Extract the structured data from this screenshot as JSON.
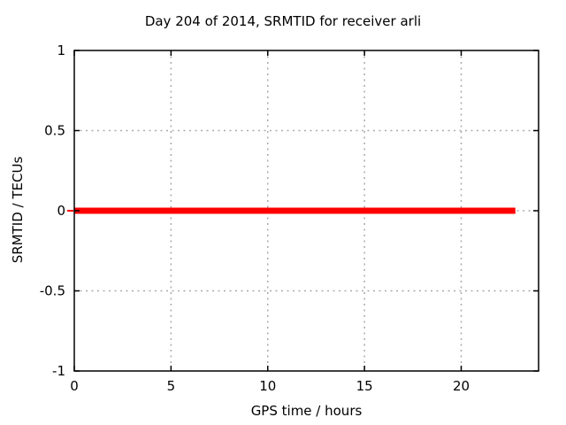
{
  "chart_data": {
    "type": "line",
    "title": "Day 204 of 2014, SRMTID for receiver arli",
    "xlabel": "GPS time / hours",
    "ylabel": "SRMTID / TECUs",
    "xlim": [
      0,
      24
    ],
    "ylim": [
      -1,
      1
    ],
    "xticks": [
      0,
      5,
      10,
      15,
      20
    ],
    "xtick_labels": [
      "0",
      "5",
      "10",
      "15",
      "20"
    ],
    "yticks": [
      1,
      0.5,
      0,
      -0.5,
      -1
    ],
    "ytick_labels": [
      "1",
      "0.5",
      "0",
      "-0.5",
      "-1"
    ],
    "grid": {
      "visible": true,
      "color": "#aaaaaa",
      "style": "dotted"
    },
    "legend": "none",
    "axis_color": "#000000",
    "text_color": "#000000",
    "background_color": "#ffffff",
    "series": [
      {
        "name": "SRMTID",
        "color": "#ff0000",
        "line_width": 7,
        "x": [
          0,
          22.8
        ],
        "y": [
          0,
          0
        ],
        "description": "constant zero value from 0 h to about 22.8 h"
      }
    ],
    "annotations": [
      {
        "type": "small-dash-left-of-y-axis-at-zero",
        "color": "#ff0000"
      }
    ]
  }
}
